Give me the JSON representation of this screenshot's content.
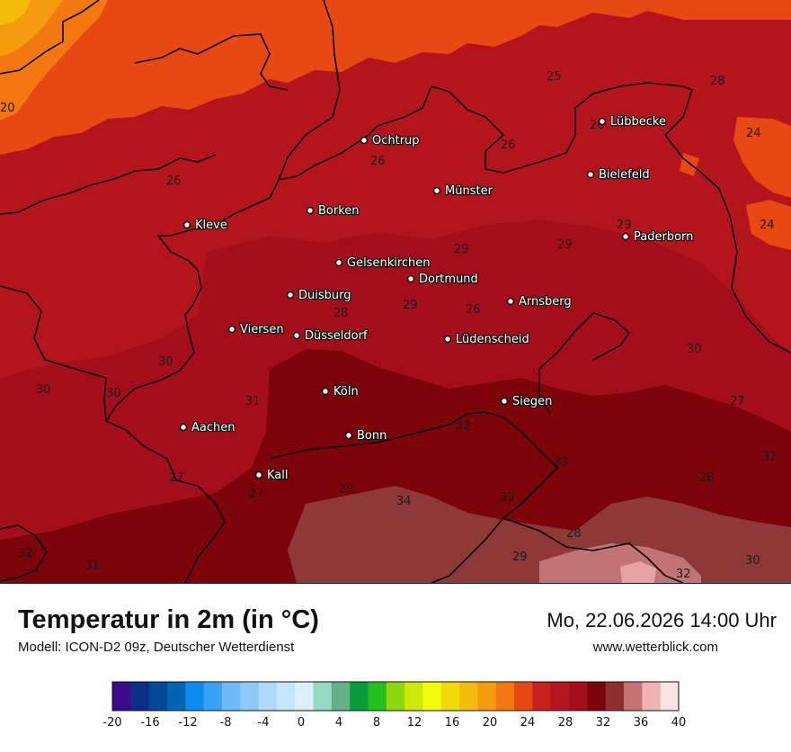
{
  "title": "Temperatur in 2m (in °C)",
  "model": "Modell: ICON-D2 09z, Deutscher Wetterdienst",
  "datetime": "Mo, 22.06.2026 14:00 Uhr",
  "website": "www.wetterblick.com",
  "cities": [
    "Ochtrup",
    "Lübbecke",
    "Bielefeld",
    "Münster",
    "Borken",
    "Kleve",
    "Paderborn",
    "Gelsenkirchen",
    "Dortmund",
    "Duisburg",
    "Arnsberg",
    "Viersen",
    "Düsseldorf",
    "Lüdenscheid",
    "Köln",
    "Siegen",
    "Aachen",
    "Bonn",
    "Kall"
  ],
  "values": [
    "20",
    "25",
    "28",
    "26",
    "24",
    "26",
    "26",
    "24",
    "29",
    "29",
    "29",
    "28",
    "26",
    "26",
    "30",
    "30",
    "30",
    "30",
    "31",
    "27",
    "32",
    "29",
    "27",
    "33",
    "32",
    "27",
    "29",
    "34",
    "33",
    "28",
    "32",
    "31",
    "29",
    "32",
    "30",
    "28"
  ],
  "scale": {
    "colors": [
      "#3b0a8a",
      "#0a2f85",
      "#034896",
      "#0464b4",
      "#0c8bf0",
      "#3aa2f5",
      "#6fbbf8",
      "#8ec9fa",
      "#aedbfc",
      "#c6e6fd",
      "#dbefff",
      "#96d8c3",
      "#63b189",
      "#0c9b3b",
      "#22c11e",
      "#90d712",
      "#cbe90b",
      "#f2f90a",
      "#f4d90a",
      "#f4bd0b",
      "#f49c0e",
      "#f37812",
      "#e84812",
      "#c8201a",
      "#b4141c",
      "#a40e1a",
      "#7c0408",
      "#8e2e2e",
      "#c27373",
      "#f0b2b2",
      "#fde2e2"
    ],
    "ticks": [
      "-20",
      "-16",
      "-12",
      "-8",
      "-4",
      "0",
      "4",
      "8",
      "12",
      "16",
      "20",
      "24",
      "28",
      "32",
      "36",
      "40"
    ]
  },
  "map_colors": {
    "band_24": "#e84812",
    "band_20": "#f37812",
    "band_16": "#f49c0e",
    "band_28": "#b4141c",
    "band_30": "#a40e1a",
    "band_32": "#7c0408",
    "band_34": "#8e3838",
    "band_36": "#c27373",
    "band_38": "#e8a2a2"
  }
}
